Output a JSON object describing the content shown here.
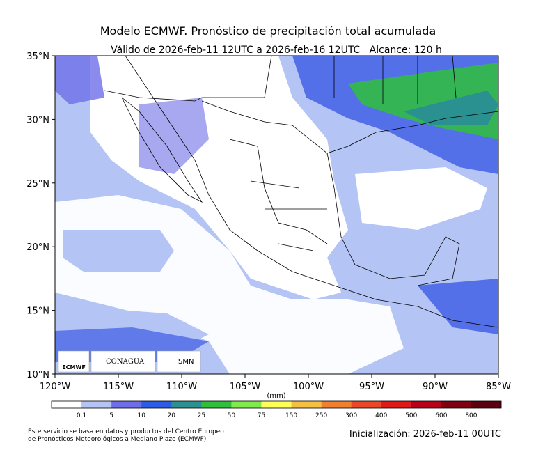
{
  "title": "Modelo ECMWF. Pronóstico de precipitación total acumulada",
  "subtitle": "Válido de 2026-feb-11 12UTC a 2026-feb-16 12UTC   Alcance: 120 h",
  "lat_labels": [
    "35°N",
    "30°N",
    "25°N",
    "20°N",
    "15°N",
    "10°N"
  ],
  "lon_labels": [
    "120°W",
    "115°W",
    "110°W",
    "105°W",
    "100°W",
    "95°W",
    "90°W",
    "85°W"
  ],
  "colorbar": {
    "unit": "(mm)",
    "labels": [
      "0.1",
      "5",
      "10",
      "20",
      "25",
      "50",
      "75",
      "150",
      "250",
      "300",
      "400",
      "500",
      "600",
      "800"
    ],
    "colors": [
      "#ffffff",
      "#b4c5f5",
      "#6e6ee8",
      "#2a5ce8",
      "#2a9090",
      "#30bf3c",
      "#80ea4a",
      "#ffff55",
      "#f5c040",
      "#f08030",
      "#e84828",
      "#e01818",
      "#b8001a",
      "#800010",
      "#5c0010"
    ]
  },
  "logos": {
    "ecmwf": "ECMWF",
    "conagua": "CONAGUA",
    "smn": "SMN"
  },
  "footer": {
    "source_lines": [
      "Este servicio se basa en datos y productos del Centro Europeo",
      "de Pronósticos Meteorológicos a Mediano Plazo (ECMWF)"
    ],
    "init": "Inicialización: 2026-feb-11 00UTC"
  }
}
